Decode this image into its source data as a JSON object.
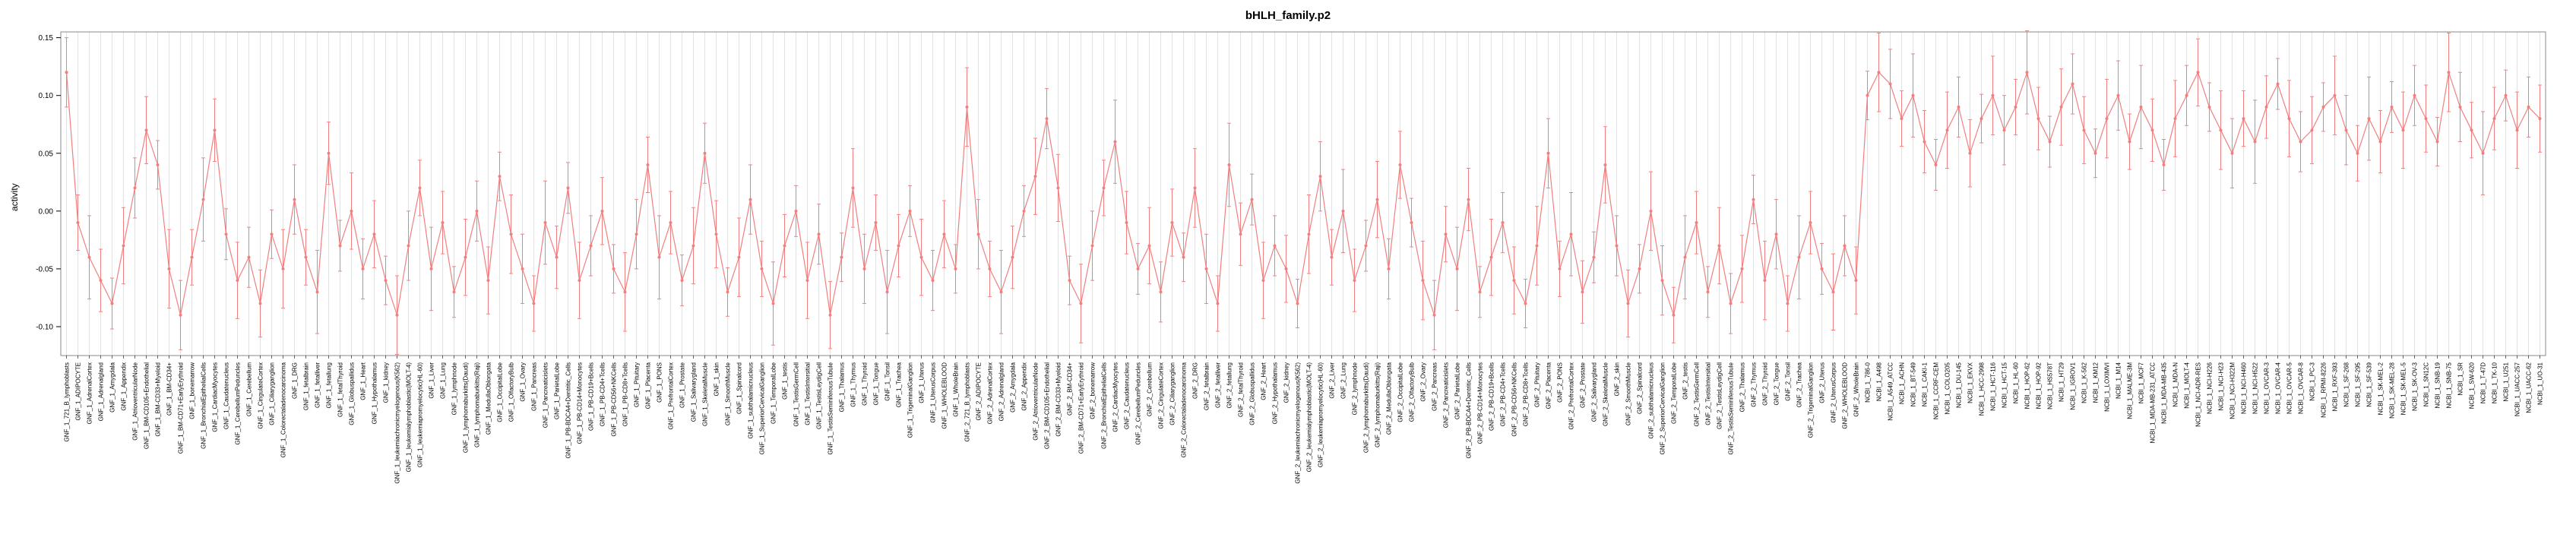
{
  "chart_data": {
    "type": "line",
    "title": "bHLH_family.p2",
    "ylabel": "activity",
    "xlabel": "",
    "ylim": [
      -0.125,
      0.155
    ],
    "yticks": [
      -0.1,
      -0.05,
      0.0,
      0.05,
      0.1,
      0.15
    ],
    "grid": "vertical-line-per-sample",
    "legend": "none",
    "point_style": "circle-with-error-bars",
    "colors": {
      "series": "#f08080",
      "grid": "#e2e2e2",
      "box": "#8a8a8a",
      "text": "#000000"
    },
    "errors_cycle": [
      0.03,
      0.024,
      0.036,
      0.027,
      0.022,
      0.033,
      0.026,
      0.029,
      0.021,
      0.034
    ],
    "categories_grouped": [
      {
        "prefix": "GNF_1_",
        "names": [
          "721_B_lymphoblasts",
          "ADIPOCYTE",
          "AdrenalCortex",
          "Adrenalgland",
          "Amygdala",
          "Appendix",
          "AtrioventricularNode",
          "BM-CD105+Endothelial",
          "BM-CD33+Myeloid",
          "BM-CD34+",
          "BM-CD71+EarlyErythroid",
          "bonemarrow",
          "BronchialEpithelialCells",
          "CardiacMyocytes",
          "Caudatenucleus",
          "CerebellumPeduncles",
          "Cerebellum",
          "CingulateCortex",
          "Ciliaryganglion",
          "Colorectaladenocarcinoma",
          "DRG",
          "fetalbrain",
          "fetalliver",
          "fetallung",
          "fetalThyroid",
          "Globuspallidus",
          "Heart",
          "Hypothalamus",
          "kidney",
          "leukemiachronicmyelogenous(K562)",
          "leukemialymphoblastic(MOLT-4)",
          "leukemiapromyelocytic(HL-60)",
          "Liver",
          "Lung",
          "lymphnode",
          "lymphomaburkitts(Daudi)",
          "lymphomaburkitts(Raji)",
          "MedullaOblongata",
          "OccipitalLobe",
          "OlfactoryBulb",
          "Ovary",
          "Pancreas",
          "Pancreaticislets",
          "ParietalLobe",
          "PB-BDCA4+Dentritic_Cells",
          "PB-CD14+Monocytes",
          "PB-CD19+Bcells",
          "PB-CD4+Tcells",
          "PB-CD56+NKCells",
          "PB-CD8+Tcells",
          "Pituitary",
          "Placenta",
          "PONS",
          "PrefrontalCortex",
          "Prostate",
          "Salivarygland",
          "SkeletalMuscle",
          "skin",
          "SmoothMuscle",
          "Spinalcord",
          "subthalamicnucleus",
          "SuperiorCervicalGanglion",
          "TemporalLobe",
          "testis",
          "TestisGermCell",
          "TestisIntersitial",
          "TestisLeydigCell",
          "TestisSeminiferousTubule",
          "Thalamus",
          "Thymus",
          "Thyroid",
          "Tongue",
          "Tonsil",
          "Trachea",
          "TrigeminalGanglion",
          "Uterus",
          "UterusCorpus",
          "WHOLEBLOOD",
          "WholeBrain"
        ]
      },
      {
        "prefix": "GNF_2_",
        "names": [
          "721_B_lymphoblasts",
          "ADIPOCYTE",
          "AdrenalCortex",
          "Adrenalgland",
          "Amygdala",
          "Appendix",
          "AtrioventricularNode",
          "BM-CD105+Endothelial",
          "BM-CD33+Myeloid",
          "BM-CD34+",
          "BM-CD71+EarlyErythroid",
          "bonemarrow",
          "BronchialEpithelialCells",
          "CardiacMyocytes",
          "Caudatenucleus",
          "CerebellumPeduncles",
          "Cerebellum",
          "CingulateCortex",
          "Ciliaryganglion",
          "Colorectaladenocarcinoma",
          "DRG",
          "fetalbrain",
          "fetalliver",
          "fetallung",
          "fetalThyroid",
          "Globuspallidus",
          "Heart",
          "Hypothalamus",
          "kidney",
          "leukemiachronicmyelogenous(K562)",
          "leukemialymphoblastic(MOLT-4)",
          "leukemiapromyelocytic(HL-60)",
          "Liver",
          "Lung",
          "lymphnode",
          "lymphomaburkitts(Daudi)",
          "lymphomaburkitts(Raji)",
          "MedullaOblongata",
          "OccipitalLobe",
          "OlfactoryBulb",
          "Ovary",
          "Pancreas",
          "Pancreaticislets",
          "ParietalLobe",
          "PB-BDCA4+Dentritic_Cells",
          "PB-CD14+Monocytes",
          "PB-CD19+Bcells",
          "PB-CD4+Tcells",
          "PB-CD56+NKCells",
          "PB-CD8+Tcells",
          "Pituitary",
          "Placenta",
          "PONS",
          "PrefrontalCortex",
          "Prostate",
          "Salivarygland",
          "SkeletalMuscle",
          "skin",
          "SmoothMuscle",
          "Spinalcord",
          "subthalamicnucleus",
          "SuperiorCervicalGanglion",
          "TemporalLobe",
          "testis",
          "TestisGermCell",
          "TestisIntersitial",
          "TestisLeydigCell",
          "TestisSeminiferousTubule",
          "Thalamus",
          "Thymus",
          "Thyroid",
          "Tongue",
          "Tonsil",
          "Trachea",
          "TrigeminalGanglion",
          "Uterus",
          "UterusCorpus",
          "WHOLEBLOOD",
          "WholeBrain"
        ]
      },
      {
        "prefix": "NCBI_1_",
        "names": [
          "786-0",
          "A498",
          "A549_ATCC",
          "ACHN",
          "BT-549",
          "CAKI-1",
          "CCRF-CEM",
          "COLO205",
          "DU-145",
          "EKVX",
          "HCC-2998",
          "HCT-116",
          "HCT-15",
          "HL-60",
          "HOP-62",
          "HOP-92",
          "HS578T",
          "HT29",
          "IGROV1",
          "K-562",
          "KM12",
          "LOXIMVI",
          "M14",
          "MALME-3M",
          "MCF7",
          "MDA-MB-231_ATCC",
          "MDA-MB-435",
          "MDA-N",
          "MOLT-4",
          "NCI-ADR-RES",
          "NCI-H226",
          "NCI-H23",
          "NCI-H322M",
          "NCI-H460",
          "NCI-H522",
          "OVCAR-3",
          "OVCAR-4",
          "OVCAR-5",
          "OVCAR-8",
          "PC-3",
          "RPMI-8226",
          "RXF-393",
          "SF-268",
          "SF-295",
          "SF-539",
          "SK-MEL-2",
          "SK-MEL-28",
          "SK-MEL-5",
          "SK-OV-3",
          "SN12C",
          "SNB-19",
          "SNB-75",
          "SR",
          "SW-620",
          "T-47D",
          "TK-10",
          "U251",
          "UACC-257",
          "UACC-62",
          "UO-31"
        ]
      }
    ],
    "values": [
      0.12,
      -0.01,
      -0.04,
      -0.06,
      -0.08,
      -0.03,
      0.02,
      0.07,
      0.04,
      -0.05,
      -0.09,
      -0.04,
      0.01,
      0.07,
      -0.02,
      -0.06,
      -0.04,
      -0.08,
      -0.02,
      -0.05,
      0.01,
      -0.04,
      -0.07,
      0.05,
      -0.03,
      0.0,
      -0.05,
      -0.02,
      -0.06,
      -0.09,
      -0.03,
      0.02,
      -0.05,
      -0.01,
      -0.07,
      -0.04,
      0.0,
      -0.06,
      0.03,
      -0.02,
      -0.05,
      -0.08,
      -0.01,
      -0.04,
      0.02,
      -0.06,
      -0.03,
      0.0,
      -0.05,
      -0.07,
      -0.02,
      0.04,
      -0.04,
      -0.01,
      -0.06,
      -0.03,
      0.05,
      -0.02,
      -0.07,
      -0.04,
      0.01,
      -0.05,
      -0.08,
      -0.03,
      0.0,
      -0.06,
      -0.02,
      -0.09,
      -0.04,
      0.02,
      -0.05,
      -0.01,
      -0.07,
      -0.03,
      0.0,
      -0.04,
      -0.06,
      -0.02,
      -0.05,
      0.09,
      -0.02,
      -0.05,
      -0.07,
      -0.04,
      0.0,
      0.03,
      0.08,
      0.02,
      -0.06,
      -0.08,
      -0.03,
      0.02,
      0.06,
      -0.01,
      -0.05,
      -0.03,
      -0.07,
      -0.01,
      -0.04,
      0.02,
      -0.05,
      -0.08,
      0.04,
      -0.02,
      0.01,
      -0.06,
      -0.03,
      -0.05,
      -0.08,
      -0.02,
      0.03,
      -0.04,
      0.0,
      -0.06,
      -0.03,
      0.01,
      -0.05,
      0.04,
      -0.01,
      -0.06,
      -0.09,
      -0.02,
      -0.05,
      0.01,
      -0.07,
      -0.04,
      -0.01,
      -0.06,
      -0.08,
      -0.03,
      0.05,
      -0.05,
      -0.02,
      -0.07,
      -0.04,
      0.04,
      -0.03,
      -0.08,
      -0.05,
      0.0,
      -0.06,
      -0.09,
      -0.04,
      -0.01,
      -0.07,
      -0.03,
      -0.08,
      -0.05,
      0.01,
      -0.06,
      -0.02,
      -0.08,
      -0.04,
      -0.01,
      -0.05,
      -0.07,
      -0.03,
      -0.06,
      0.1,
      0.12,
      0.11,
      0.08,
      0.1,
      0.06,
      0.04,
      0.07,
      0.09,
      0.05,
      0.08,
      0.1,
      0.07,
      0.09,
      0.12,
      0.08,
      0.06,
      0.09,
      0.11,
      0.07,
      0.05,
      0.08,
      0.1,
      0.06,
      0.09,
      0.07,
      0.04,
      0.08,
      0.1,
      0.12,
      0.09,
      0.07,
      0.05,
      0.08,
      0.06,
      0.09,
      0.11,
      0.08,
      0.06,
      0.07,
      0.09,
      0.1,
      0.07,
      0.05,
      0.08,
      0.06,
      0.09,
      0.07,
      0.1,
      0.08,
      0.06,
      0.12,
      0.09,
      0.07,
      0.05,
      0.08,
      0.1,
      0.07,
      0.09,
      0.08
    ]
  }
}
